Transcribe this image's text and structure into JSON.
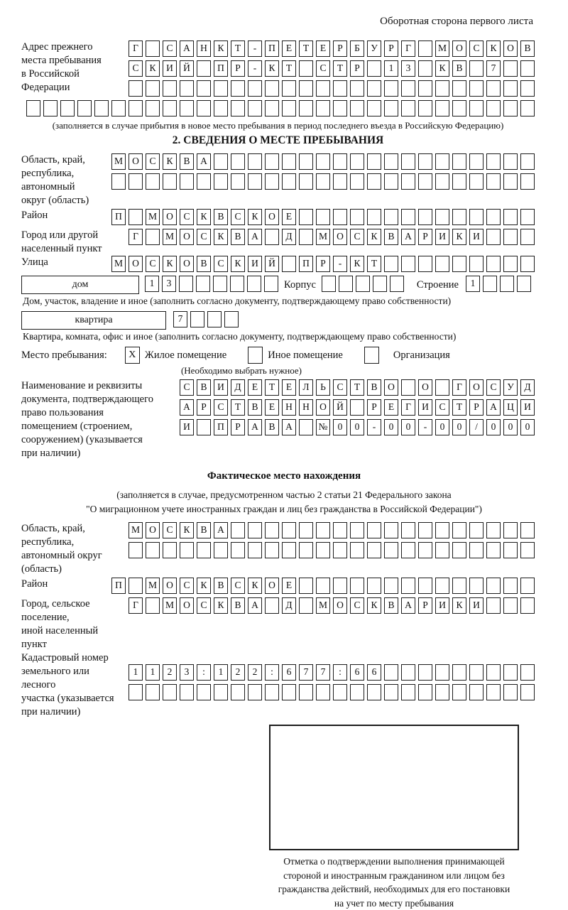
{
  "page": {
    "side_note": "Оборотная сторона первого листа",
    "section2_title": "2. СВЕДЕНИЯ О МЕСТЕ ПРЕБЫВАНИЯ"
  },
  "prev_address": {
    "label": "Адрес прежнего\nместа пребывания\nв Российской\nФедерации",
    "row1": "Г САНКТ-ПЕТЕРБУРГ МОСКОВ",
    "row2": "СКИЙ ПР-КТ СТР 13 КВ 7",
    "row3": "",
    "row4": "",
    "note": "(заполняется в случае прибытия в новое место пребывания в период последнего въезда в Российскую Федерацию)"
  },
  "stay": {
    "oblast": {
      "label": "Область, край,\nреспублика,\nавтономный\nокруг (область)",
      "row1": "МОСКВА",
      "row2": ""
    },
    "raion": {
      "label": "Район",
      "row": "П МОСКВСКОЕ"
    },
    "gorod": {
      "label": "Город или другой\nнаселенный пункт",
      "row": "Г МОСКВА Д МОСКВАРИКИ"
    },
    "ulitsa": {
      "label": "Улица",
      "row": "МОСКОВСКИЙ ПР-КТ"
    },
    "dom": {
      "box_label": "дом",
      "cells": "13",
      "korpus_label": "Корпус",
      "korpus_cells": "",
      "stroenie_label": "Строение",
      "stroenie_cells": "1"
    },
    "dom_note": "Дом, участок, владение и иное (заполнить согласно документу, подтверждающему право собственности)",
    "kvartira": {
      "box_label": "квартира",
      "cells": "7"
    },
    "kvartira_note": "Квартира, комната, офис и иное (заполнить согласно документу, подтверждающему право собственности)",
    "type": {
      "label": "Место пребывания:",
      "options": [
        {
          "label": "Жилое помещение",
          "mark": "X"
        },
        {
          "label": "Иное помещение",
          "mark": ""
        },
        {
          "label": "Организация",
          "mark": ""
        }
      ],
      "note": "(Необходимо выбрать нужное)"
    },
    "doc": {
      "label": "Наименование и реквизиты\nдокумента, подтверждающего\nправо пользования\nпомещением (строением,\nсооружением) (указывается\nпри наличии)",
      "row1": "СВИДЕТЕЛЬСТВО О ГОСУД",
      "row2": "АРСТВЕННОЙ РЕГИСТРАЦИ",
      "row3": "И ПРАВА №00-00-00/000"
    }
  },
  "actual": {
    "title": "Фактическое место нахождения",
    "note": "(заполняется в случае, предусмотренном частью 2 статьи 21 Федерального закона\n\"О миграционном учете иностранных граждан и лиц без гражданства в Российской Федерации\")",
    "oblast": {
      "label": "Область, край,\nреспублика,\nавтономный округ\n(область)",
      "row1": "МОСКВА",
      "row2": ""
    },
    "raion": {
      "label": "Район",
      "row": "П МОСКВСКОЕ"
    },
    "gorod": {
      "label": "Город, сельское поселение,\nиной населенный пункт",
      "row": "Г МОСКВА Д МОСКВАРИКИ"
    },
    "cadastre": {
      "label": "Кадастровый номер\nземельного или лесного\nучастка (указывается\nпри наличии)",
      "row1": "1123:122:677:66",
      "row2": ""
    }
  },
  "stamp": {
    "caption": "Отметка о подтверждении выполнения принимающей\nстороной и иностранным гражданином или лицом без\nгражданства действий, необходимых для его постановки\nна учет по месту пребывания"
  }
}
